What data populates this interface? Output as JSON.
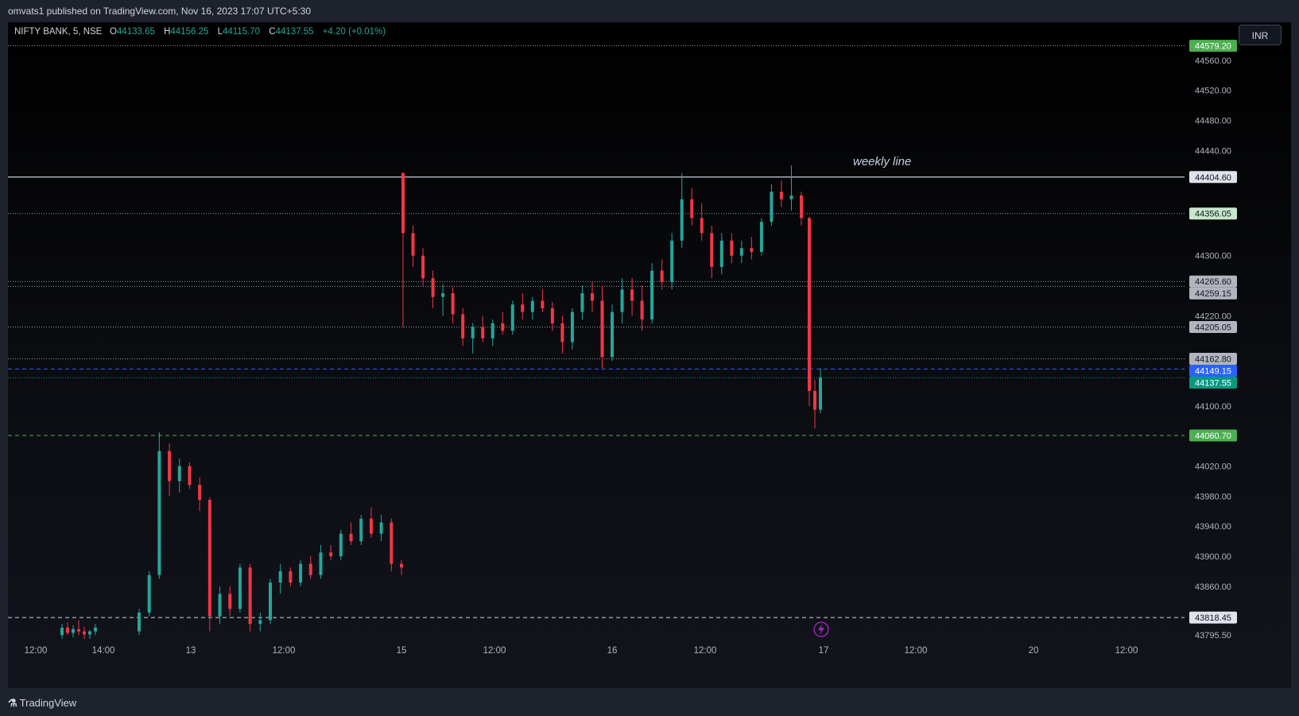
{
  "header": {
    "published_text": "omvats1 published on TradingView.com, Nov 16, 2023 17:07 UTC+5:30"
  },
  "legend": {
    "symbol": "NIFTY BANK, 5, NSE",
    "o_label": "O",
    "o_value": "44133.65",
    "h_label": "H",
    "h_value": "44156.25",
    "l_label": "L",
    "l_value": "44115.70",
    "c_label": "C",
    "c_value": "44137.55",
    "change": "+4.20 (+0.01%)"
  },
  "currency_button": "INR",
  "footer": {
    "logo_glyph": "⚗",
    "brand": "TradingView"
  },
  "colors": {
    "up": "#26a69a",
    "down": "#f23645",
    "grid_text": "#b2b5be",
    "green_badge": "#4caf50",
    "blue_badge": "#2962ff",
    "teal_badge": "#089981"
  },
  "chart_data": {
    "type": "candlestick",
    "symbol": "NIFTY BANK",
    "timeframe": "5",
    "exchange": "NSE",
    "y_range": [
      43790,
      44600
    ],
    "y_ticks": [
      "44560.00",
      "44520.00",
      "44480.00",
      "44440.00",
      "44300.00",
      "44220.00",
      "44100.00",
      "44020.00",
      "43980.00",
      "43940.00",
      "43900.00",
      "43860.00",
      "43795.50"
    ],
    "x_ticks": [
      "12:00",
      "14:00",
      "13",
      "12:00",
      "15",
      "12:00",
      "16",
      "12:00",
      "17",
      "12:00",
      "20",
      "12:00"
    ],
    "price_labels": [
      {
        "value": "44579.20",
        "style": "green"
      },
      {
        "value": "44404.60",
        "style": "white"
      },
      {
        "value": "44356.05",
        "style": "lightgreen"
      },
      {
        "value": "44265.60",
        "style": "grey"
      },
      {
        "value": "44259.15",
        "style": "grey"
      },
      {
        "value": "44205.05",
        "style": "grey"
      },
      {
        "value": "44162.80",
        "style": "grey"
      },
      {
        "value": "44149.15",
        "style": "blue"
      },
      {
        "value": "44137.55",
        "style": "teal"
      },
      {
        "value": "44060.70",
        "style": "green"
      },
      {
        "value": "43818.45",
        "style": "white"
      }
    ],
    "horizontal_lines": [
      {
        "price": 44579.2,
        "style": "dotted"
      },
      {
        "price": 44404.6,
        "style": "solid"
      },
      {
        "price": 44356.05,
        "style": "dotted"
      },
      {
        "price": 44265.6,
        "style": "dotted"
      },
      {
        "price": 44259.15,
        "style": "dotted"
      },
      {
        "price": 44205.05,
        "style": "dotted"
      },
      {
        "price": 44162.8,
        "style": "dotted"
      },
      {
        "price": 44149.15,
        "style": "dashed-blue"
      },
      {
        "price": 44137.55,
        "style": "dotted-teal"
      },
      {
        "price": 44060.7,
        "style": "dashed-green"
      },
      {
        "price": 43818.45,
        "style": "dashed-white"
      }
    ],
    "annotation": "weekly line",
    "candles": [
      [
        43795,
        43810,
        43790,
        43805
      ],
      [
        43805,
        43812,
        43795,
        43798
      ],
      [
        43798,
        43808,
        43792,
        43803
      ],
      [
        43803,
        43815,
        43795,
        43800
      ],
      [
        43800,
        43806,
        43790,
        43796
      ],
      [
        43796,
        43802,
        43790,
        43800
      ],
      [
        43800,
        43810,
        43795,
        43805
      ],
      [
        43800,
        43830,
        43795,
        43825
      ],
      [
        43825,
        43880,
        43820,
        43875
      ],
      [
        43875,
        44065,
        43870,
        44040
      ],
      [
        44040,
        44050,
        43980,
        44000
      ],
      [
        44000,
        44030,
        43985,
        44020
      ],
      [
        44020,
        44025,
        43990,
        43995
      ],
      [
        43995,
        44005,
        43960,
        43975
      ],
      [
        43975,
        43978,
        43800,
        43820
      ],
      [
        43820,
        43860,
        43810,
        43850
      ],
      [
        43850,
        43860,
        43820,
        43830
      ],
      [
        43830,
        43890,
        43825,
        43885
      ],
      [
        43885,
        43890,
        43800,
        43810
      ],
      [
        43810,
        43825,
        43800,
        43815
      ],
      [
        43815,
        43870,
        43810,
        43865
      ],
      [
        43865,
        43890,
        43850,
        43880
      ],
      [
        43880,
        43885,
        43860,
        43865
      ],
      [
        43865,
        43895,
        43860,
        43890
      ],
      [
        43890,
        43900,
        43870,
        43875
      ],
      [
        43875,
        43915,
        43870,
        43905
      ],
      [
        43905,
        43915,
        43895,
        43900
      ],
      [
        43900,
        43935,
        43895,
        43930
      ],
      [
        43930,
        43945,
        43915,
        43920
      ],
      [
        43920,
        43955,
        43915,
        43950
      ],
      [
        43950,
        43965,
        43925,
        43930
      ],
      [
        43930,
        43955,
        43920,
        43945
      ],
      [
        43945,
        43950,
        43880,
        43890
      ],
      [
        43890,
        43895,
        43875,
        43885
      ],
      [
        44410,
        44410,
        44205,
        44330
      ],
      [
        44330,
        44340,
        44285,
        44300
      ],
      [
        44300,
        44310,
        44260,
        44270
      ],
      [
        44270,
        44280,
        44230,
        44245
      ],
      [
        44245,
        44262,
        44220,
        44250
      ],
      [
        44250,
        44258,
        44210,
        44222
      ],
      [
        44222,
        44230,
        44180,
        44190
      ],
      [
        44190,
        44210,
        44170,
        44205
      ],
      [
        44205,
        44220,
        44185,
        44190
      ],
      [
        44190,
        44215,
        44180,
        44210
      ],
      [
        44210,
        44225,
        44195,
        44200
      ],
      [
        44200,
        44240,
        44195,
        44235
      ],
      [
        44235,
        44250,
        44215,
        44225
      ],
      [
        44225,
        44245,
        44215,
        44240
      ],
      [
        44240,
        44255,
        44225,
        44230
      ],
      [
        44230,
        44238,
        44200,
        44210
      ],
      [
        44210,
        44220,
        44170,
        44185
      ],
      [
        44185,
        44230,
        44175,
        44225
      ],
      [
        44225,
        44260,
        44215,
        44250
      ],
      [
        44250,
        44265,
        44225,
        44240
      ],
      [
        44240,
        44260,
        44150,
        44165
      ],
      [
        44165,
        44235,
        44160,
        44225
      ],
      [
        44225,
        44270,
        44210,
        44255
      ],
      [
        44255,
        44270,
        44220,
        44240
      ],
      [
        44240,
        44260,
        44200,
        44215
      ],
      [
        44215,
        44290,
        44210,
        44280
      ],
      [
        44280,
        44295,
        44255,
        44265
      ],
      [
        44265,
        44330,
        44255,
        44320
      ],
      [
        44320,
        44410,
        44310,
        44375
      ],
      [
        44375,
        44390,
        44340,
        44350
      ],
      [
        44350,
        44370,
        44320,
        44330
      ],
      [
        44330,
        44340,
        44270,
        44285
      ],
      [
        44285,
        44330,
        44275,
        44320
      ],
      [
        44320,
        44330,
        44290,
        44300
      ],
      [
        44300,
        44320,
        44290,
        44310
      ],
      [
        44310,
        44325,
        44295,
        44305
      ],
      [
        44305,
        44350,
        44300,
        44345
      ],
      [
        44345,
        44395,
        44340,
        44385
      ],
      [
        44385,
        44400,
        44365,
        44375
      ],
      [
        44375,
        44420,
        44360,
        44380
      ],
      [
        44380,
        44385,
        44340,
        44350
      ],
      [
        44350,
        44352,
        44100,
        44120
      ],
      [
        44120,
        44135,
        44070,
        44095
      ],
      [
        44095,
        44150,
        44090,
        44138
      ]
    ]
  }
}
